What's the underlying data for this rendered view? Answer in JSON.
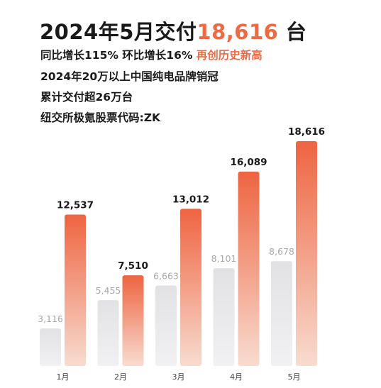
{
  "headline": {
    "prefix": "2024年5月交付",
    "highlight": "18,616",
    "suffix": " 台"
  },
  "lines": {
    "l1_text": "同比增长115% 环比增长16% ",
    "l1_highlight": "再创历史新高",
    "l2": "2024年20万以上中国纯电品牌销冠",
    "l3": "累计交付超26万台",
    "l4": "纽交所极氪股票代码:ZK"
  },
  "colors": {
    "accent": "#ee6a45",
    "grey_bar": "#e4e4e6",
    "grey_label": "#a8a8a8",
    "text": "#1a1a1a"
  },
  "chart_data": {
    "type": "bar",
    "categories": [
      "1月",
      "2月",
      "3月",
      "4月",
      "5月"
    ],
    "series": [
      {
        "values": [
          3116,
          5455,
          6663,
          8101,
          8678
        ]
      },
      {
        "values": [
          12537,
          7510,
          13012,
          16089,
          18616
        ]
      }
    ],
    "labels": [
      [
        "3,116",
        "5,455",
        "6,663",
        "8,101",
        "8,678"
      ],
      [
        "12,537",
        "7,510",
        "13,012",
        "16,089",
        "18,616"
      ]
    ],
    "ylim": [
      0,
      18616
    ],
    "grid": false,
    "legend": "none"
  }
}
